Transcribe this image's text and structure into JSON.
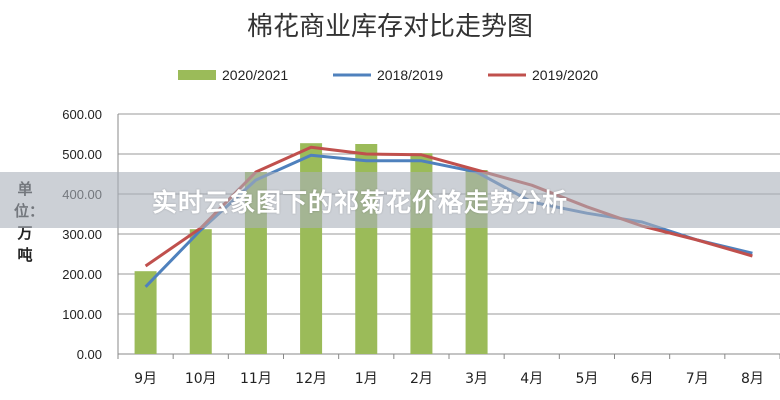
{
  "chart_data": {
    "type": "bar+line",
    "title": "棉花商业库存对比走势图",
    "ylabel": "单位：万吨",
    "xlabel": "",
    "categories": [
      "9月",
      "10月",
      "11月",
      "12月",
      "1月",
      "2月",
      "3月",
      "4月",
      "5月",
      "6月",
      "7月",
      "8月"
    ],
    "ylim": [
      0,
      600
    ],
    "yticks": [
      "0.00",
      "100.00",
      "200.00",
      "300.00",
      "400.00",
      "500.00",
      "600.00"
    ],
    "grid": true,
    "legend": "top",
    "series": [
      {
        "name": "2020/2021",
        "kind": "bar",
        "color": "#9bbb59",
        "values": [
          207,
          312,
          455,
          527,
          525,
          502,
          460,
          null,
          null,
          null,
          null,
          null
        ]
      },
      {
        "name": "2018/2019",
        "kind": "line",
        "color": "#4f81bd",
        "values": [
          168,
          310,
          435,
          497,
          483,
          483,
          455,
          380,
          352,
          330,
          285,
          252
        ]
      },
      {
        "name": "2019/2020",
        "kind": "line",
        "color": "#c0504d",
        "values": [
          220,
          315,
          455,
          517,
          500,
          498,
          460,
          422,
          368,
          320,
          285,
          245
        ]
      }
    ]
  },
  "overlay": {
    "banner_text": "实时云象图下的祁菊花价格走势分析"
  }
}
